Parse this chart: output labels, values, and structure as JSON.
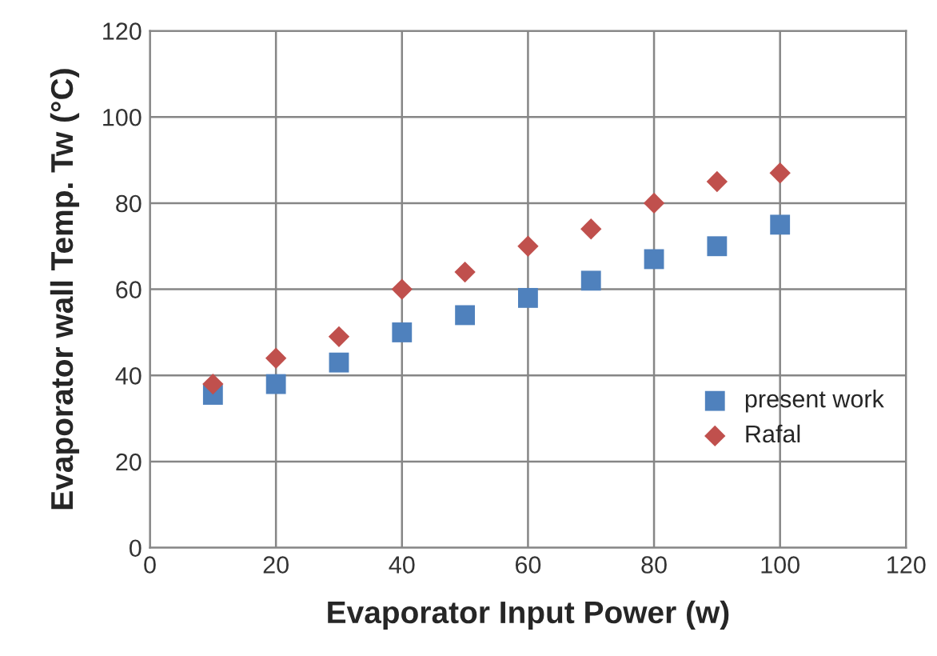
{
  "chart_data": {
    "type": "scatter",
    "xlabel": "Evaporator Input Power (w)",
    "ylabel": "Evaporator wall Temp. Tw (°C)",
    "x": [
      10,
      20,
      30,
      40,
      50,
      60,
      70,
      80,
      90,
      100
    ],
    "series": [
      {
        "name": "present work",
        "color": "#4f81bd",
        "marker": "square",
        "values": [
          35.5,
          38,
          43,
          50,
          54,
          58,
          62,
          67,
          70,
          75
        ]
      },
      {
        "name": "Rafal",
        "color": "#c0504d",
        "marker": "diamond",
        "values": [
          38,
          44,
          49,
          60,
          64,
          70,
          74,
          80,
          85,
          87
        ]
      }
    ],
    "xlim": [
      0,
      120
    ],
    "xticks": [
      0,
      20,
      40,
      60,
      80,
      100,
      120
    ],
    "ylim": [
      0,
      120
    ],
    "yticks": [
      0,
      20,
      40,
      60,
      80,
      100,
      120
    ],
    "grid": true,
    "legend": "right"
  }
}
